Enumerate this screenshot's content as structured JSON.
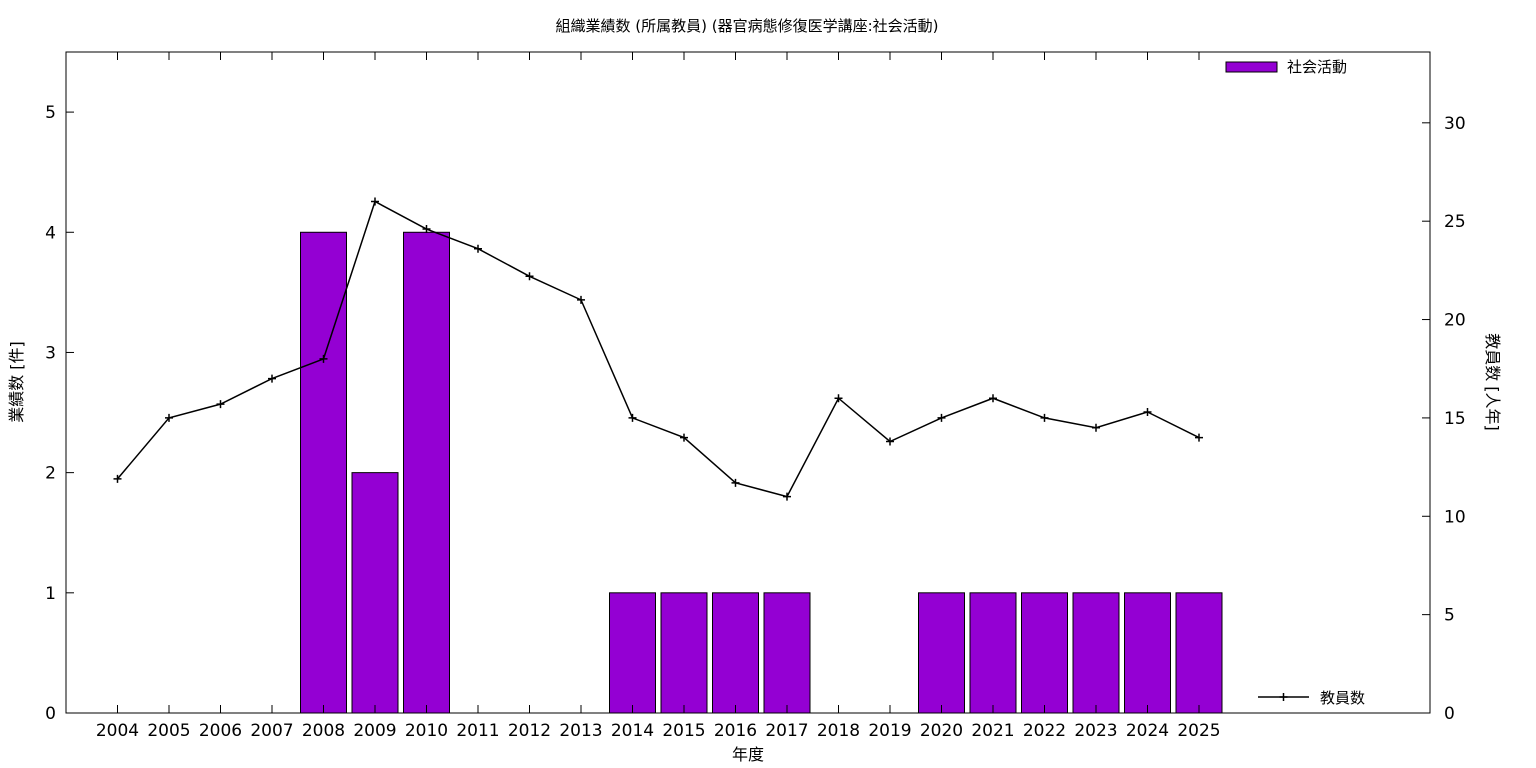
{
  "chart_data": {
    "type": "bar",
    "title": "組織業績数 (所属教員) (器官病態修復医学講座:社会活動)",
    "xlabel": "年度",
    "ylabel": "業績数 [件]",
    "y2label": "教員数 [人年]",
    "categories": [
      "2004",
      "2005",
      "2006",
      "2007",
      "2008",
      "2009",
      "2010",
      "2011",
      "2012",
      "2013",
      "2014",
      "2015",
      "2016",
      "2017",
      "2018",
      "2019",
      "2020",
      "2021",
      "2022",
      "2023",
      "2024",
      "2025"
    ],
    "ylim": [
      0,
      5.5
    ],
    "y_ticks": [
      0,
      1,
      2,
      3,
      4,
      5
    ],
    "y2lim": [
      0,
      33.6
    ],
    "y2_ticks": [
      0,
      5,
      10,
      15,
      20,
      25,
      30
    ],
    "series": [
      {
        "name": "社会活動",
        "type": "bar",
        "axis": "left",
        "color": "#9400d3",
        "values": [
          0,
          0,
          0,
          0,
          4,
          2,
          4,
          0,
          0,
          0,
          1,
          1,
          1,
          1,
          0,
          0,
          1,
          1,
          1,
          1,
          1,
          1
        ]
      },
      {
        "name": "教員数",
        "type": "line",
        "axis": "right",
        "color": "#000000",
        "marker": "plus",
        "values": [
          11.9,
          15.0,
          15.7,
          17.0,
          18.0,
          26.0,
          24.6,
          23.6,
          22.2,
          21.0,
          15.0,
          14.0,
          11.7,
          11.0,
          16.0,
          13.8,
          15.0,
          16.0,
          15.0,
          14.5,
          15.3,
          14.0
        ]
      }
    ],
    "legend": [
      {
        "label": "社会活動",
        "position": "top-right"
      },
      {
        "label": "教員数",
        "position": "bottom-right"
      }
    ],
    "grid": false
  }
}
